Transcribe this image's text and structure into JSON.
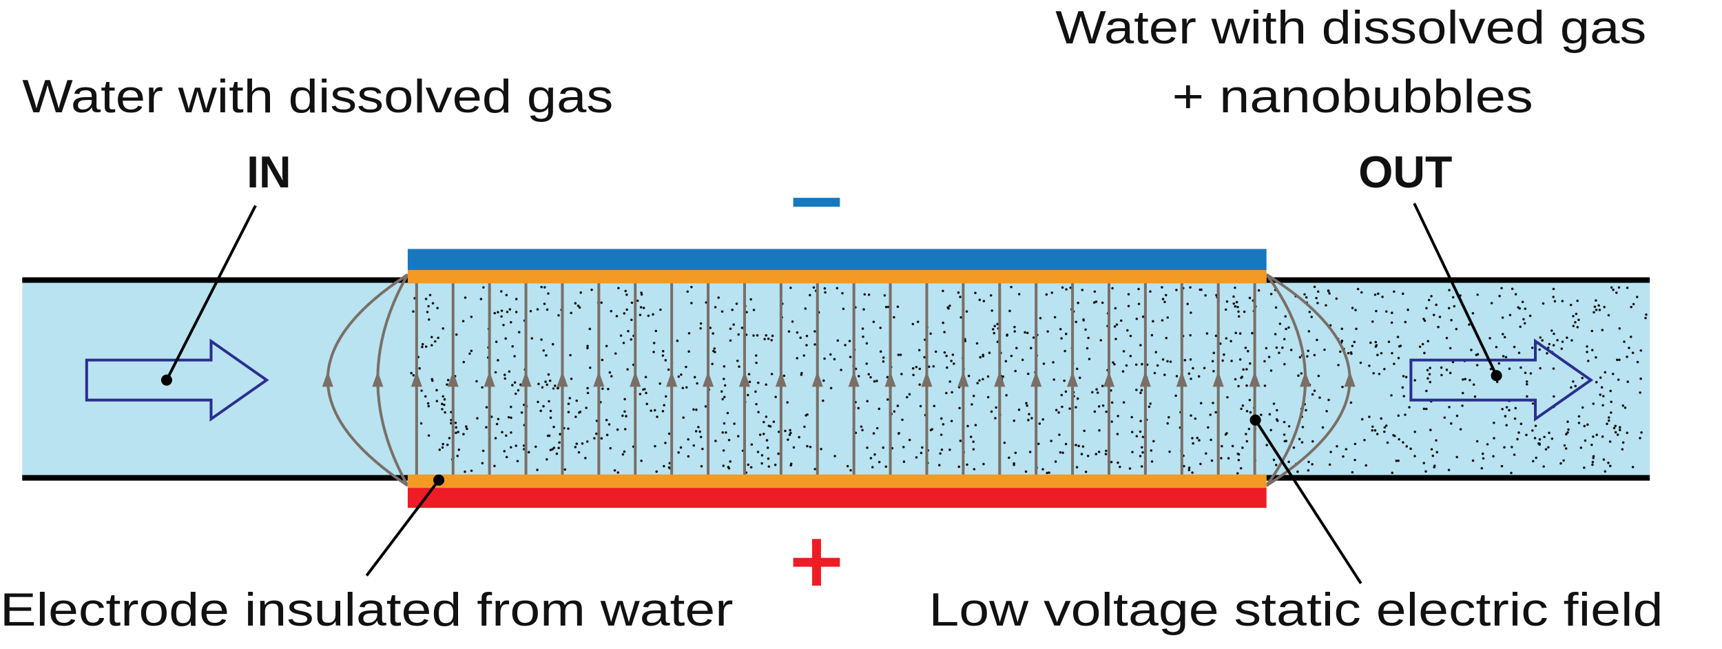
{
  "labels": {
    "input_title": "Water with dissolved gas",
    "in": "IN",
    "output_title_line1": "Water with dissolved gas",
    "output_title_line2": "+ nanobubbles",
    "out": "OUT",
    "electrode": "Electrode insulated from water",
    "field": "Low voltage static electric field"
  }
}
